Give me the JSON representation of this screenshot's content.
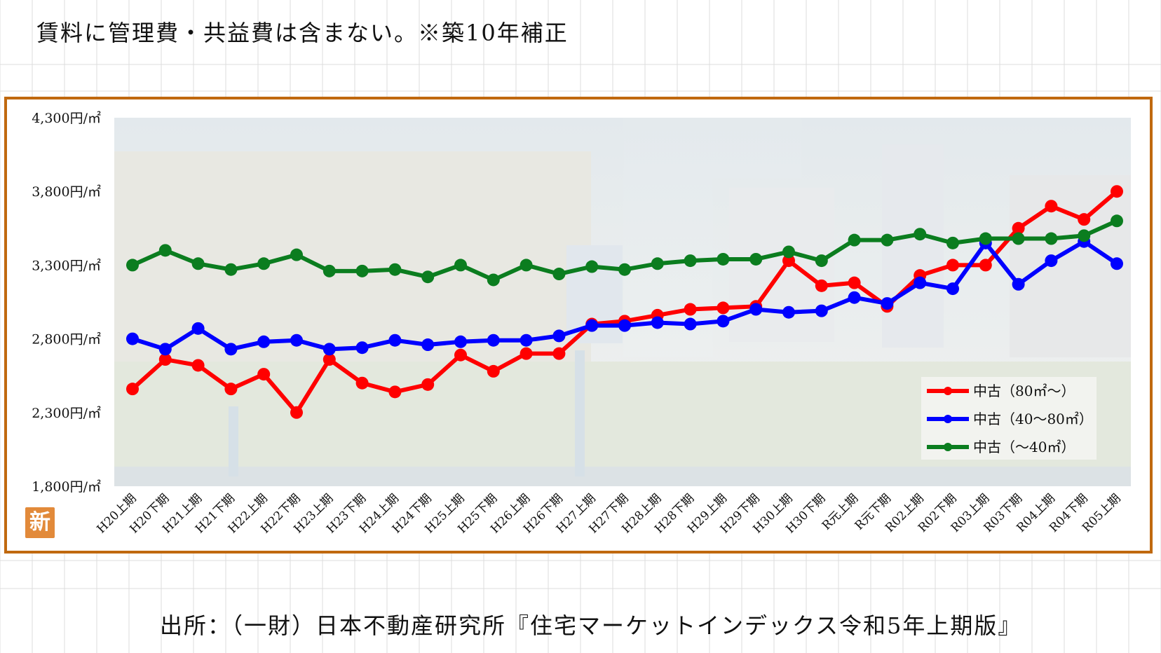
{
  "header": {
    "note": "賃料に管理費・共益費は含まない。※築10年補正"
  },
  "footer": {
    "source": "出所：（一財）日本不動産研究所『住宅マーケットインデックス令和5年上期版』"
  },
  "badge": {
    "label": "新"
  },
  "colors": {
    "frame": "#c0690f",
    "red": "#ff0000",
    "blue": "#0000ff",
    "green": "#0b7d1f",
    "badge": "#e28a3a"
  },
  "chart_data": {
    "type": "line",
    "title": "",
    "xlabel": "",
    "ylabel": "",
    "ylim": [
      1800,
      4300
    ],
    "yticks": [
      1800,
      2300,
      2800,
      3300,
      3800,
      4300
    ],
    "ytick_labels": [
      "1,800円/㎡",
      "2,300円/㎡",
      "2,800円/㎡",
      "3,300円/㎡",
      "3,800円/㎡",
      "4,300円/㎡"
    ],
    "grid": false,
    "legend_position": "bottom-right",
    "categories": [
      "H20上期",
      "H20下期",
      "H21上期",
      "H21下期",
      "H22上期",
      "H22下期",
      "H23上期",
      "H23下期",
      "H24上期",
      "H24下期",
      "H25上期",
      "H25下期",
      "H26上期",
      "H26下期",
      "H27上期",
      "H27下期",
      "H28上期",
      "H28下期",
      "H29上期",
      "H29下期",
      "H30上期",
      "H30下期",
      "R元上期",
      "R元下期",
      "R02上期",
      "R02下期",
      "R03上期",
      "R03下期",
      "R04上期",
      "R04下期",
      "R05上期"
    ],
    "series": [
      {
        "name": "中古（80㎡～）",
        "color": "#ff0000",
        "values": [
          2460,
          2660,
          2620,
          2460,
          2560,
          2300,
          2660,
          2500,
          2440,
          2490,
          2690,
          2580,
          2700,
          2700,
          2900,
          2920,
          2960,
          3000,
          3010,
          3020,
          3330,
          3160,
          3180,
          3020,
          3230,
          3300,
          3300,
          3550,
          3700,
          3610,
          3800
        ]
      },
      {
        "name": "中古（40～80㎡）",
        "color": "#0000ff",
        "values": [
          2800,
          2730,
          2870,
          2730,
          2780,
          2790,
          2730,
          2740,
          2790,
          2760,
          2780,
          2790,
          2790,
          2820,
          2890,
          2890,
          2910,
          2900,
          2920,
          3000,
          2980,
          2990,
          3080,
          3040,
          3180,
          3140,
          3450,
          3170,
          3330,
          3460,
          3310
        ]
      },
      {
        "name": "中古（～40㎡）",
        "color": "#0b7d1f",
        "values": [
          3300,
          3400,
          3310,
          3270,
          3310,
          3370,
          3260,
          3260,
          3270,
          3220,
          3300,
          3200,
          3300,
          3240,
          3290,
          3270,
          3310,
          3330,
          3340,
          3340,
          3390,
          3330,
          3470,
          3470,
          3510,
          3450,
          3480,
          3480,
          3480,
          3500,
          3600
        ]
      }
    ]
  }
}
